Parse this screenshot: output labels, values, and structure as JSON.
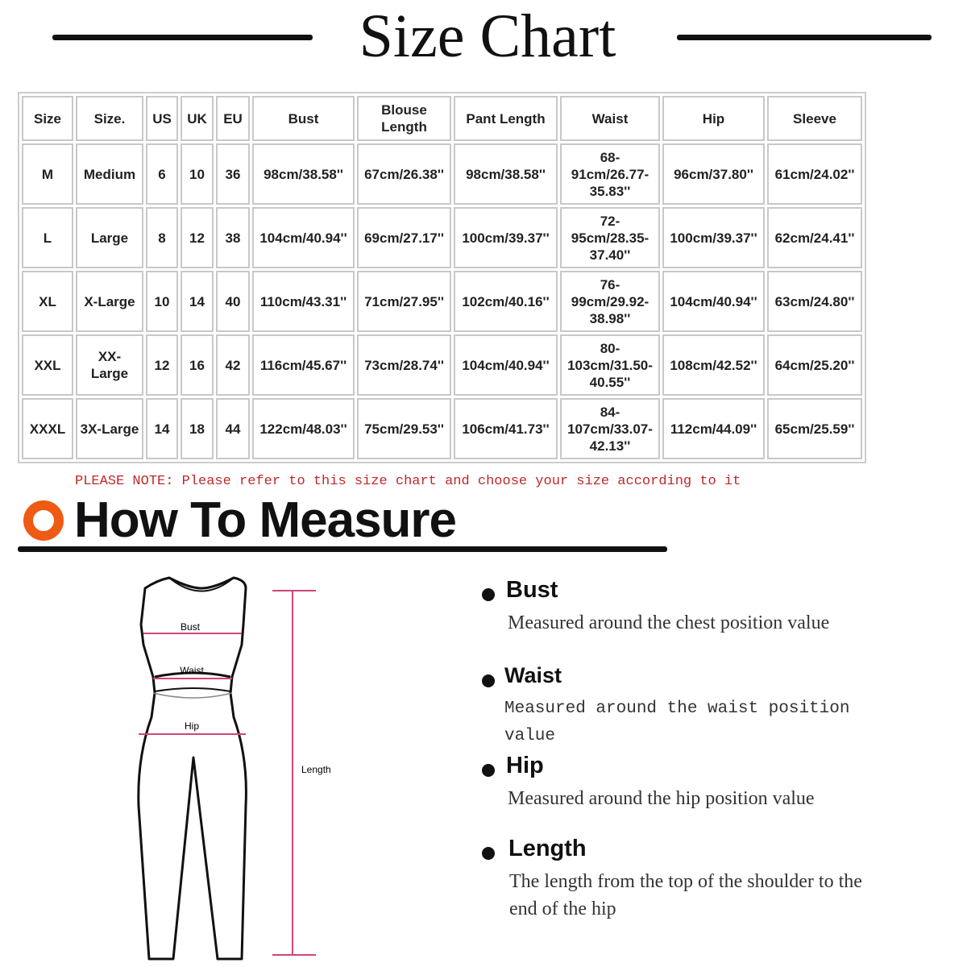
{
  "title": "Size Chart",
  "table": {
    "headers": [
      "Size",
      "Size.",
      "US",
      "UK",
      "EU",
      "Bust",
      "Blouse Length",
      "Pant Length",
      "Waist",
      "Hip",
      "Sleeve"
    ],
    "rows": [
      [
        "M",
        "Medium",
        "6",
        "10",
        "36",
        "98cm/38.58''",
        "67cm/26.38''",
        "98cm/38.58''",
        "68-91cm/26.77-35.83''",
        "96cm/37.80''",
        "61cm/24.02''"
      ],
      [
        "L",
        "Large",
        "8",
        "12",
        "38",
        "104cm/40.94''",
        "69cm/27.17''",
        "100cm/39.37''",
        "72-95cm/28.35-37.40''",
        "100cm/39.37''",
        "62cm/24.41''"
      ],
      [
        "XL",
        "X-Large",
        "10",
        "14",
        "40",
        "110cm/43.31''",
        "71cm/27.95''",
        "102cm/40.16''",
        "76-99cm/29.92-38.98''",
        "104cm/40.94''",
        "63cm/24.80''"
      ],
      [
        "XXL",
        "XX-Large",
        "12",
        "16",
        "42",
        "116cm/45.67''",
        "73cm/28.74''",
        "104cm/40.94''",
        "80-103cm/31.50-40.55''",
        "108cm/42.52''",
        "64cm/25.20''"
      ],
      [
        "XXXL",
        "3X-Large",
        "14",
        "18",
        "44",
        "122cm/48.03''",
        "75cm/29.53''",
        "106cm/41.73''",
        "84-107cm/33.07-42.13''",
        "112cm/44.09''",
        "65cm/25.59''"
      ]
    ]
  },
  "note": "PLEASE NOTE: Please refer to this size chart and choose your size according to it",
  "measure": {
    "heading": "How To Measure",
    "accent_color": "#ef5a14",
    "diagram": {
      "bust": "Bust",
      "waist": "Waist",
      "hip": "Hip",
      "length": "Length"
    },
    "items": [
      {
        "title": "Bust",
        "desc": "Measured around the chest position value"
      },
      {
        "title": "Waist",
        "desc": "Measured around  the  waist  position  value"
      },
      {
        "title": "Hip",
        "desc": "Measured around the  hip position value"
      },
      {
        "title": "Length",
        "desc": "The length from the top of the shoulder to the end of the hip"
      }
    ]
  }
}
